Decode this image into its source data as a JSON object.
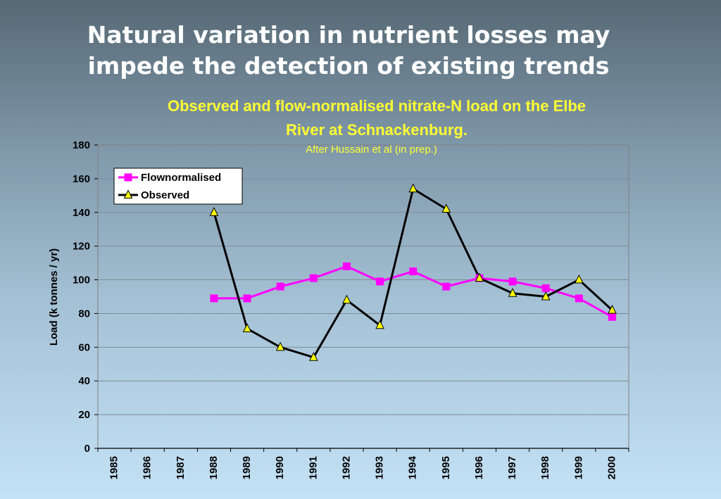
{
  "slide": {
    "title_line1": "Natural variation in nutrient losses may",
    "title_line2": "impede the detection of existing trends",
    "subtitle_line1": "Observed and flow-normalised nitrate-N load on  the Elbe",
    "subtitle_line2": "River at Schnackenburg.",
    "source_note": "After Hussain et al (in prep.)"
  },
  "chart_data": {
    "type": "line",
    "title": "Observed and flow-normalised nitrate-N load on  the Elbe River at Schnackenburg.",
    "subtitle": "After Hussain et al (in prep.)",
    "xlabel": "",
    "ylabel": "Load (k tonnes / yr)",
    "categories": [
      "1985",
      "1986",
      "1987",
      "1988",
      "1989",
      "1990",
      "1991",
      "1992",
      "1993",
      "1994",
      "1995",
      "1996",
      "1997",
      "1998",
      "1999",
      "2000"
    ],
    "ylim": [
      0,
      180
    ],
    "yticks": [
      0,
      20,
      40,
      60,
      80,
      100,
      120,
      140,
      160,
      180
    ],
    "grid": true,
    "legend_position": "top-left",
    "series": [
      {
        "name": "Flownormalised",
        "color": "#ff00ff",
        "marker": "square",
        "values": [
          null,
          null,
          null,
          89,
          89,
          96,
          101,
          108,
          99,
          105,
          96,
          101,
          99,
          95,
          89,
          78
        ]
      },
      {
        "name": "Observed",
        "color": "#000000",
        "marker": "triangle",
        "marker_fill": "#ffff00",
        "values": [
          null,
          null,
          null,
          140,
          71,
          60,
          54,
          88,
          73,
          154,
          142,
          101,
          92,
          90,
          100,
          82
        ]
      }
    ]
  }
}
